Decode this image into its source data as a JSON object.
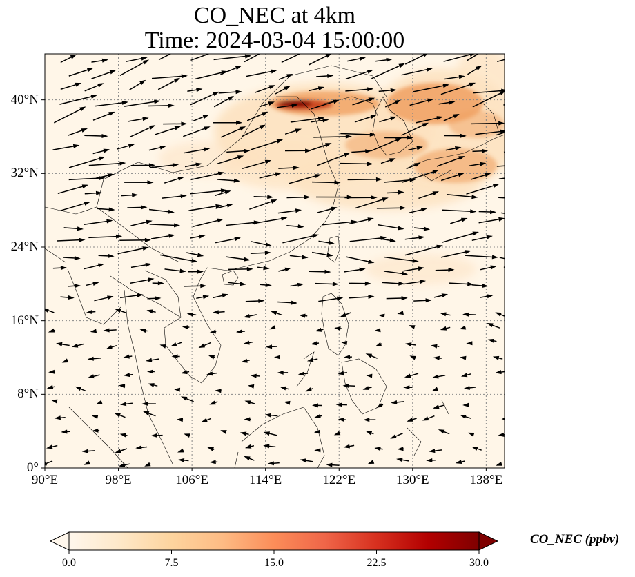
{
  "map": {
    "title_line1": "CO_NEC at 4km",
    "title_line2": "Time: 2024-03-04 15:00:00",
    "projection": "PlateCarree",
    "extent": {
      "lon_min": 90,
      "lon_max": 140,
      "lat_min": 0,
      "lat_max": 45
    },
    "lon_ticks": [
      90,
      98,
      106,
      114,
      122,
      130,
      138
    ],
    "lon_tick_labels": [
      "90°E",
      "98°E",
      "106°E",
      "114°E",
      "122°E",
      "130°E",
      "138°E"
    ],
    "lat_ticks": [
      0,
      8,
      16,
      24,
      32,
      40
    ],
    "lat_tick_labels": [
      "0°",
      "8°N",
      "16°N",
      "24°N",
      "32°N",
      "40°N"
    ],
    "gridlines": true,
    "gridline_style": "dotted",
    "background_color": "#fff6e8",
    "plume_colors": {
      "light": "#fde2c0",
      "mid": "#f0a060",
      "high": "#c83a14",
      "max": "#7a0000"
    }
  },
  "colorbar": {
    "label": "CO_NEC (ppbv)",
    "ticks": [
      0.0,
      7.5,
      15.0,
      22.5,
      30.0
    ],
    "tick_labels": [
      "0.0",
      "7.5",
      "15.0",
      "22.5",
      "30.0"
    ],
    "extend": "both",
    "colormap": "OrRd",
    "stops": [
      "#fff7ec",
      "#fee8c8",
      "#fdd49e",
      "#fdbb84",
      "#fc8d59",
      "#ef6548",
      "#d7301f",
      "#b30000",
      "#7f0000"
    ]
  }
}
